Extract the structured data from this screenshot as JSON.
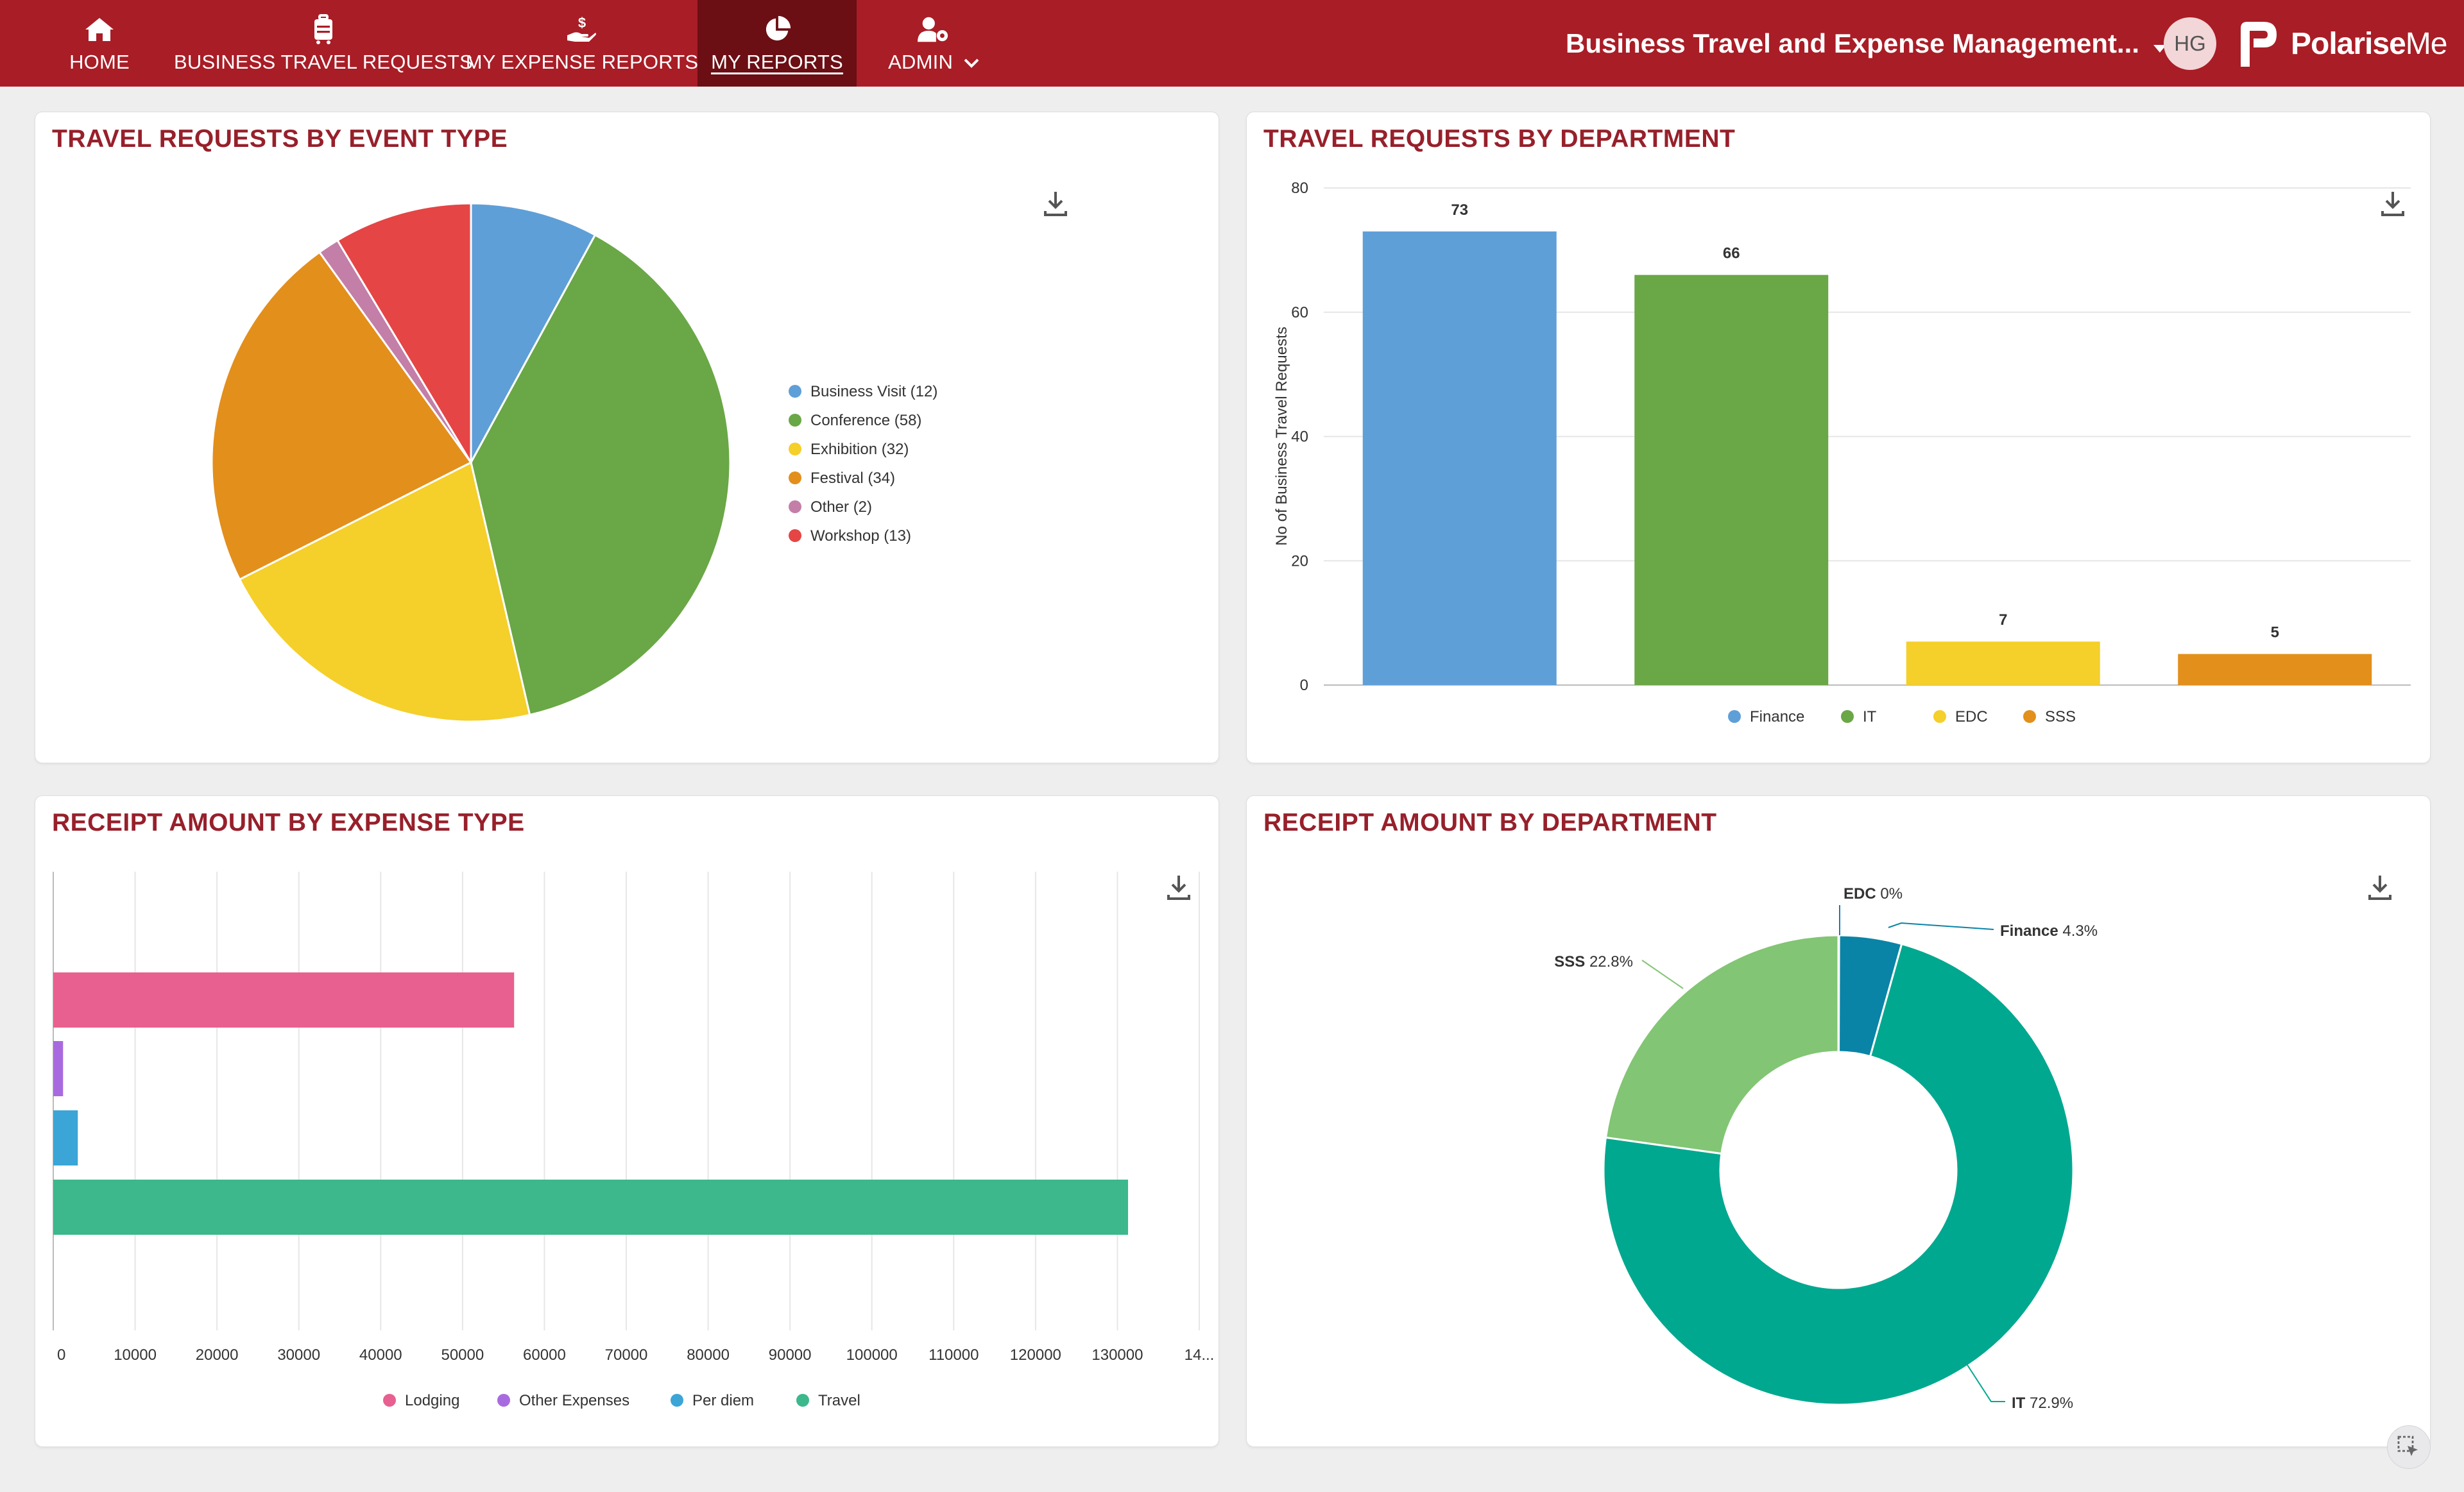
{
  "nav": {
    "items": [
      {
        "label": "HOME",
        "icon": "home-icon"
      },
      {
        "label": "BUSINESS TRAVEL REQUESTS",
        "icon": "luggage-icon"
      },
      {
        "label": "MY EXPENSE REPORTS",
        "icon": "money-hand-icon"
      },
      {
        "label": "MY REPORTS",
        "icon": "pie-chart-icon",
        "active": true
      },
      {
        "label": "ADMIN",
        "icon": "user-gear-icon"
      }
    ],
    "app_title": "Business Travel and Expense Management...",
    "avatar_initials": "HG",
    "logo_text_bold": "Polarise",
    "logo_text": "Me"
  },
  "colors": {
    "brand": "#a91d26",
    "brand_dark": "#6b0f14",
    "title": "#97202b"
  },
  "cards": {
    "event_type": {
      "title": "TRAVEL REQUESTS BY EVENT TYPE"
    },
    "department": {
      "title": "TRAVEL REQUESTS BY DEPARTMENT"
    },
    "expense_type": {
      "title": "RECEIPT AMOUNT BY EXPENSE TYPE"
    },
    "receipt_department": {
      "title": "RECEIPT AMOUNT BY DEPARTMENT"
    }
  },
  "chart_data": [
    {
      "type": "pie",
      "title": "TRAVEL REQUESTS BY EVENT TYPE",
      "legend_position": "right",
      "labels": [
        "Business Visit (12)",
        "Conference (58)",
        "Exhibition (32)",
        "Festival (34)",
        "Other (2)",
        "Workshop (13)"
      ],
      "values": [
        12,
        58,
        32,
        34,
        2,
        13
      ],
      "colors": [
        "#5f9fd8",
        "#6aa746",
        "#f5cf2a",
        "#e38f1c",
        "#c37fa8",
        "#e54545"
      ]
    },
    {
      "type": "bar",
      "title": "TRAVEL REQUESTS BY DEPARTMENT",
      "ylabel": "No of Business Travel Requests",
      "ylim": [
        0,
        80
      ],
      "yticks": [
        "0",
        "20",
        "40",
        "60",
        "80"
      ],
      "grid": true,
      "legend_position": "bottom",
      "categories": [
        "Finance",
        "IT",
        "EDC",
        "SSS"
      ],
      "values": [
        73,
        66,
        7,
        5
      ],
      "colors": [
        "#5f9fd8",
        "#6aa746",
        "#f5cf2a",
        "#e38f1c"
      ]
    },
    {
      "type": "bar",
      "orientation": "horizontal",
      "title": "RECEIPT AMOUNT BY EXPENSE TYPE",
      "xlim": [
        0,
        140000
      ],
      "xticks": [
        "0",
        "10000",
        "20000",
        "30000",
        "40000",
        "50000",
        "60000",
        "70000",
        "80000",
        "90000",
        "100000",
        "110000",
        "120000",
        "130000",
        "14..."
      ],
      "grid": true,
      "legend_position": "bottom",
      "categories": [
        "Lodging",
        "Other Expenses",
        "Per diem",
        "Travel"
      ],
      "values": [
        56300,
        1200,
        3000,
        131300
      ],
      "colors": [
        "#e8608f",
        "#a86bdf",
        "#3aa5d6",
        "#3cb88c"
      ]
    },
    {
      "type": "pie",
      "variant": "donut",
      "title": "RECEIPT AMOUNT BY DEPARTMENT",
      "categories": [
        "EDC",
        "Finance",
        "IT",
        "SSS"
      ],
      "percent_labels": [
        "0%",
        "4.3%",
        "72.9%",
        "22.8%"
      ],
      "values": [
        0.05,
        4.3,
        72.9,
        22.8
      ],
      "colors": [
        "#1f7bb0",
        "#0a84a6",
        "#00a88f",
        "#82c574"
      ]
    }
  ]
}
